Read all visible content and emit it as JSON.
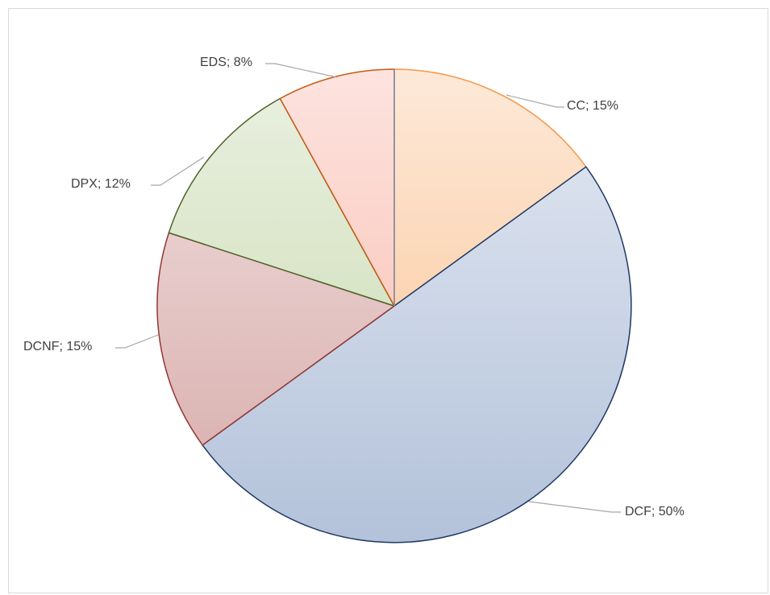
{
  "chart_data": {
    "type": "pie",
    "title": "",
    "start_angle_deg": 0,
    "direction": "clockwise",
    "slices": [
      {
        "label": "CC",
        "value": 15,
        "display": "CC; 15%",
        "fill_top": "#fde9d9",
        "fill_bottom": "#fbbf8b",
        "stroke": "#f79646"
      },
      {
        "label": "DCF",
        "value": 50,
        "display": "DCF; 50%",
        "fill_top": "#e4e9f3",
        "fill_bottom": "#b3c2da",
        "stroke": "#1f3864"
      },
      {
        "label": "DCNF",
        "value": 15,
        "display": "DCNF; 15%",
        "fill_top": "#f3e1e1",
        "fill_bottom": "#d4a9a7",
        "stroke": "#943634"
      },
      {
        "label": "DPX",
        "value": 12,
        "display": "DPX; 12%",
        "fill_top": "#eaf0e2",
        "fill_bottom": "#c6d9a9",
        "stroke": "#4f6228"
      },
      {
        "label": "EDS",
        "value": 8,
        "display": "EDS; 8%",
        "fill_top": "#fde3df",
        "fill_bottom": "#f8b7a6",
        "stroke": "#c55a11"
      }
    ],
    "legend": "none",
    "colors": {
      "leader_line": "#a6a6a6",
      "label_text": "#404040",
      "frame_border": "#d9d9d9",
      "start_line": "#7f93b3"
    }
  }
}
